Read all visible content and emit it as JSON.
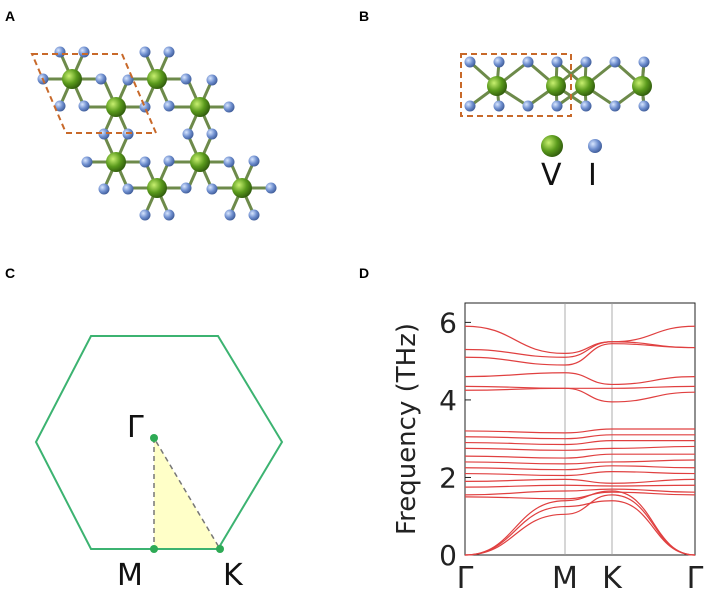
{
  "panels": {
    "a": "A",
    "b": "B",
    "c": "C",
    "d": "D"
  },
  "legend": {
    "v_label": "V",
    "i_label": "I",
    "v_color": "#5a9a1c",
    "i_color": "#6f8fcf"
  },
  "brillouin": {
    "gamma": "Γ",
    "m": "M",
    "k": "K",
    "hexagon_color": "#3cb371",
    "wedge_fill": "#ffffc8"
  },
  "chart_data": {
    "type": "line",
    "ylabel": "Frequency (THz)",
    "xlabel": "",
    "ylim": [
      0,
      6.5
    ],
    "yticks": [
      "0",
      "2",
      "4",
      "6"
    ],
    "kpoints": [
      "Γ",
      "M",
      "K",
      "Γ"
    ],
    "line_color": "#e04040",
    "series": [
      {
        "values": [
          0.0,
          1.05,
          1.55,
          0.0
        ]
      },
      {
        "values": [
          0.0,
          1.25,
          1.4,
          0.0
        ]
      },
      {
        "values": [
          0.0,
          1.4,
          1.65,
          0.0
        ]
      },
      {
        "values": [
          1.5,
          1.45,
          1.62,
          1.55
        ]
      },
      {
        "values": [
          1.55,
          1.65,
          1.7,
          1.62
        ]
      },
      {
        "values": [
          1.75,
          1.8,
          1.78,
          1.8
        ]
      },
      {
        "values": [
          1.9,
          1.95,
          1.85,
          1.95
        ]
      },
      {
        "values": [
          2.1,
          2.05,
          2.15,
          2.1
        ]
      },
      {
        "values": [
          2.25,
          2.2,
          2.3,
          2.25
        ]
      },
      {
        "values": [
          2.4,
          2.35,
          2.4,
          2.45
        ]
      },
      {
        "values": [
          2.55,
          2.5,
          2.6,
          2.6
        ]
      },
      {
        "values": [
          2.75,
          2.7,
          2.75,
          2.8
        ]
      },
      {
        "values": [
          2.9,
          2.85,
          2.95,
          2.95
        ]
      },
      {
        "values": [
          3.05,
          3.0,
          3.1,
          3.1
        ]
      },
      {
        "values": [
          3.2,
          3.15,
          3.25,
          3.25
        ]
      },
      {
        "values": [
          4.25,
          4.3,
          3.95,
          4.2
        ]
      },
      {
        "values": [
          4.35,
          4.3,
          4.3,
          4.35
        ]
      },
      {
        "values": [
          4.6,
          4.7,
          4.4,
          4.6
        ]
      },
      {
        "values": [
          5.1,
          4.9,
          5.45,
          5.35
        ]
      },
      {
        "values": [
          5.3,
          5.1,
          5.5,
          5.35
        ]
      },
      {
        "values": [
          5.9,
          5.2,
          5.5,
          5.9
        ]
      }
    ]
  }
}
